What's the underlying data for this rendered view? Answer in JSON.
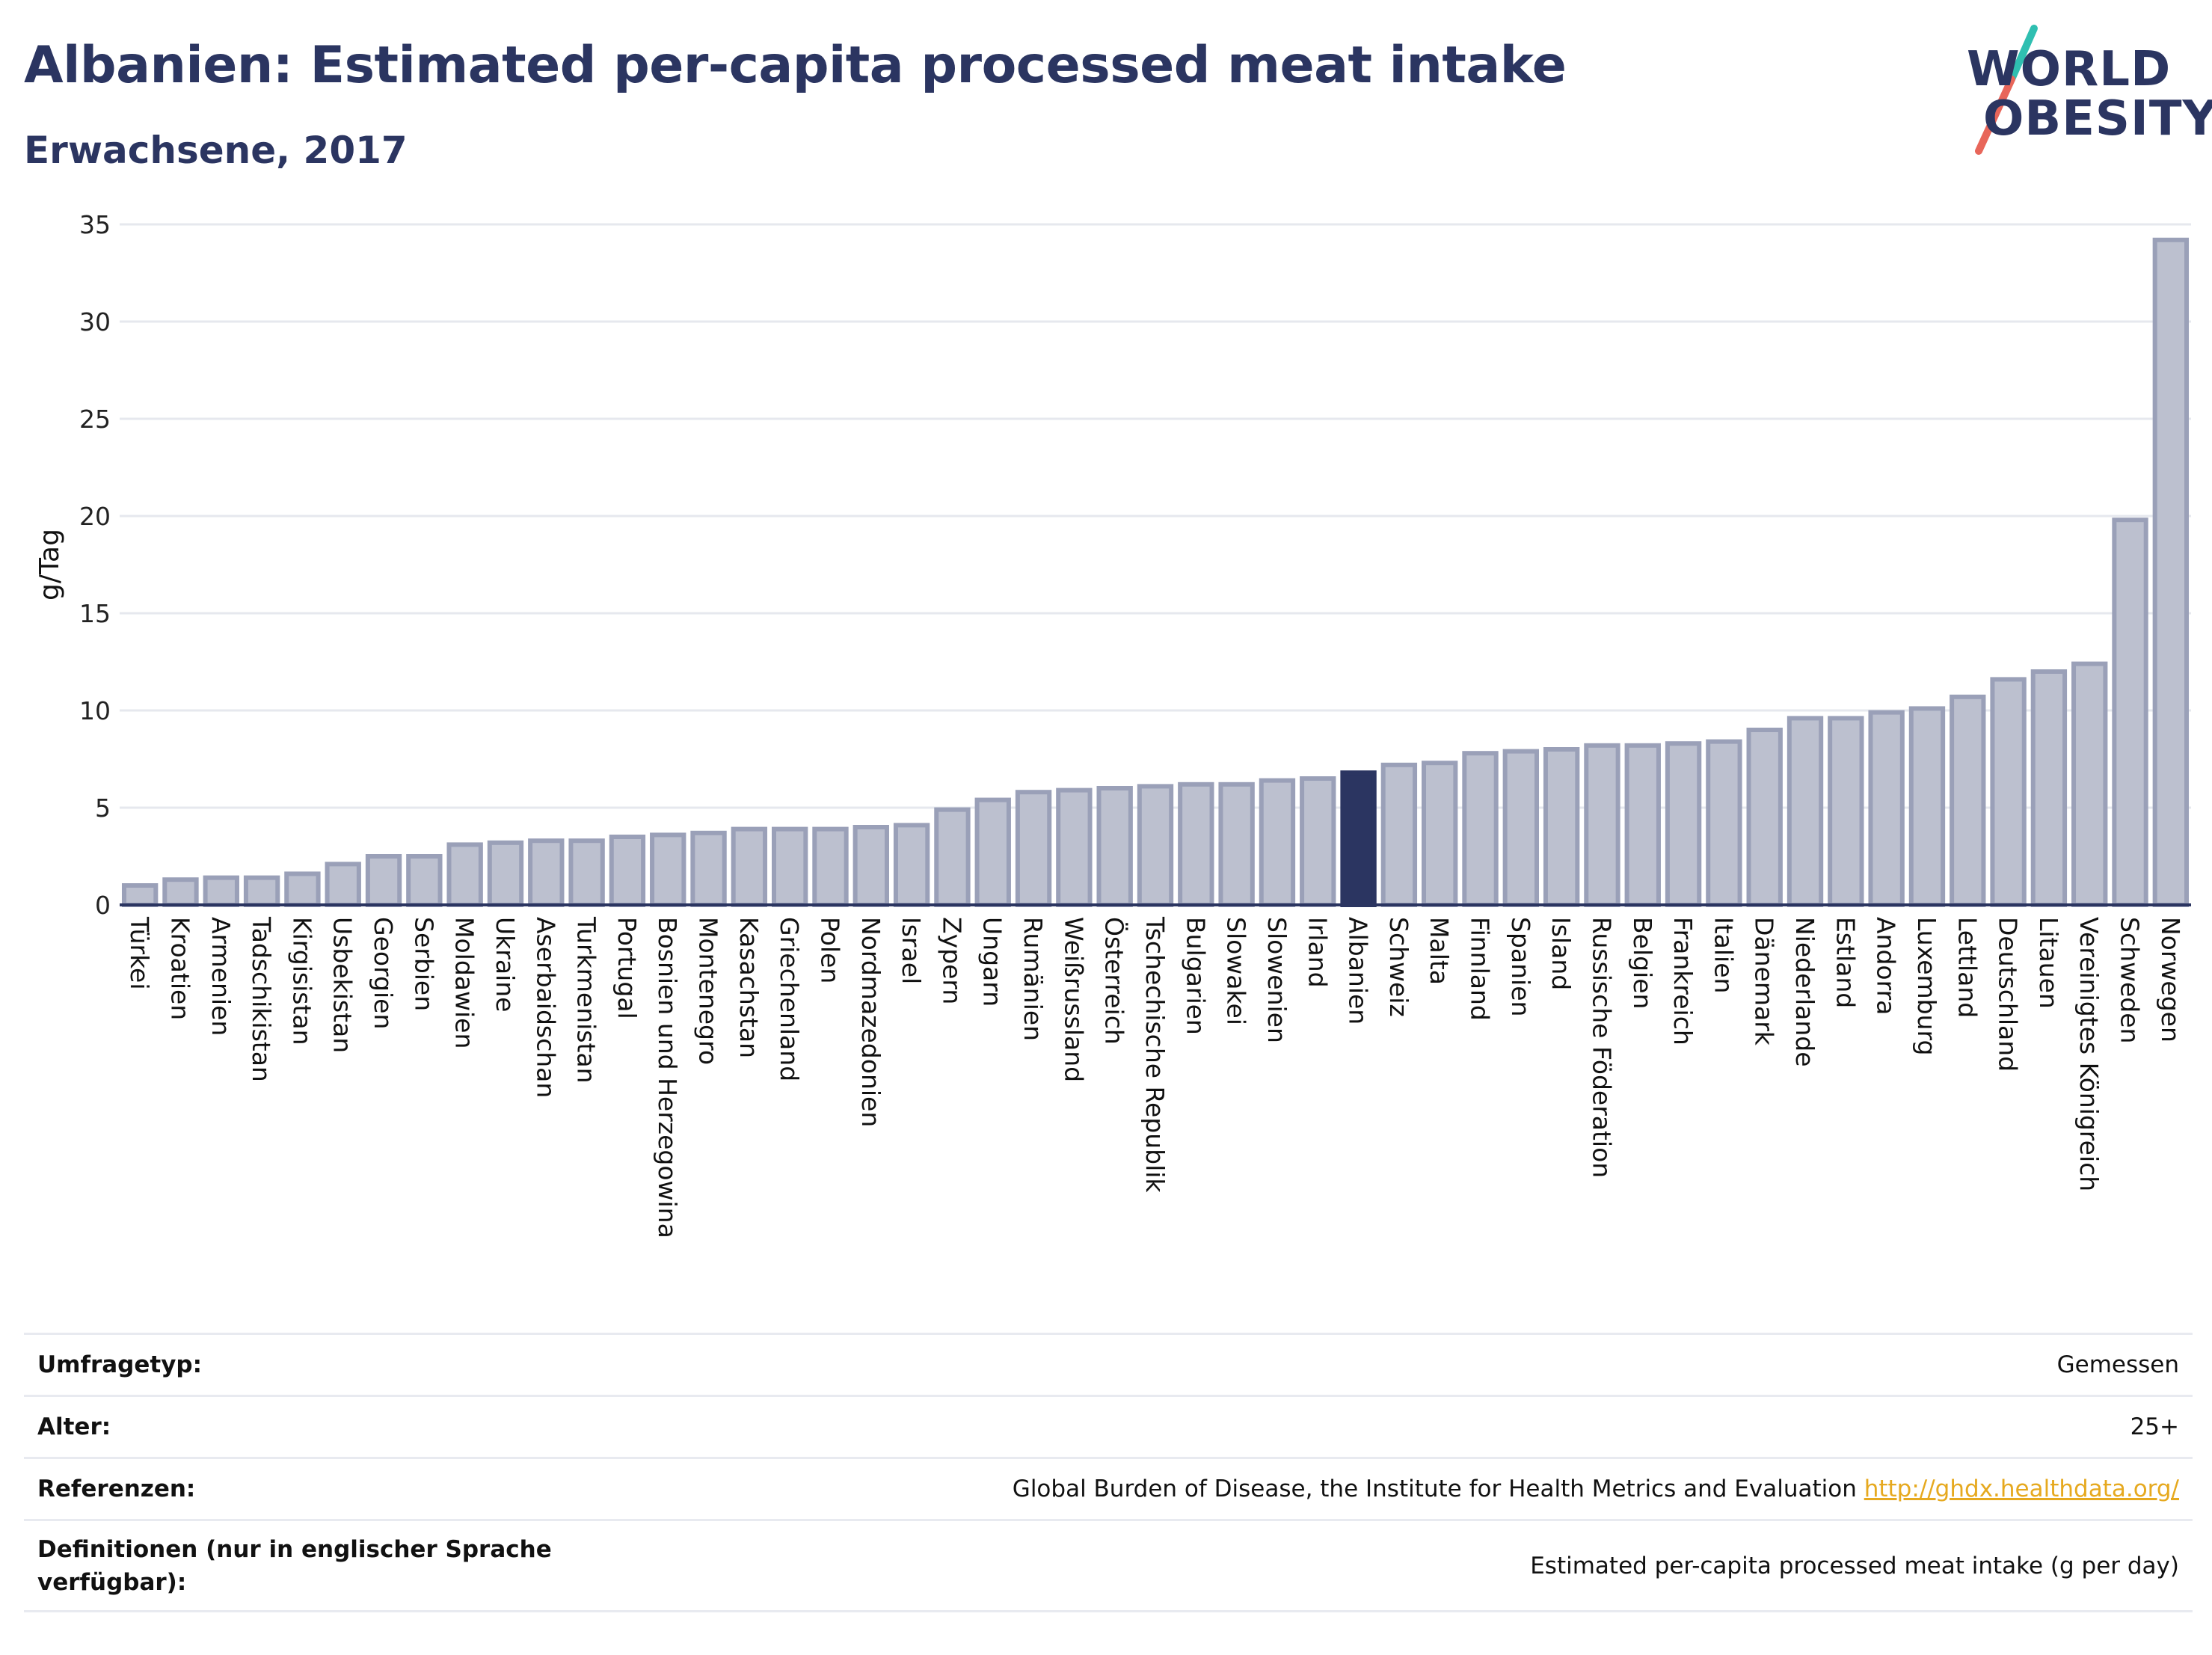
{
  "header": {
    "title": "Albanien: Estimated per-capita processed meat intake",
    "subtitle": "Erwachsene, 2017"
  },
  "logo": {
    "line1": "WORLD",
    "line2": "OBESITY",
    "colors": {
      "text": "#2b3561",
      "slash_top": "#2fbfb1",
      "slash_bottom": "#e8665a"
    }
  },
  "colors": {
    "bar_fill": "#bcc0cf",
    "bar_stroke": "#9aa0b8",
    "highlight": "#2b3561",
    "grid": "#e6e8ee",
    "axis": "#2b3561"
  },
  "chart_data": {
    "type": "bar",
    "ylabel": "g/Tag",
    "ylim": [
      0,
      35
    ],
    "yticks": [
      0,
      5,
      10,
      15,
      20,
      25,
      30,
      35
    ],
    "grid": true,
    "highlight": "Albanien",
    "categories": [
      "Türkei",
      "Kroatien",
      "Armenien",
      "Tadschikistan",
      "Kirgisistan",
      "Usbekistan",
      "Georgien",
      "Serbien",
      "Moldawien",
      "Ukraine",
      "Aserbaidschan",
      "Turkmenistan",
      "Portugal",
      "Bosnien und Herzegowina",
      "Montenegro",
      "Kasachstan",
      "Griechenland",
      "Polen",
      "Nordmazedonien",
      "Israel",
      "Zypern",
      "Ungarn",
      "Rumänien",
      "Weißrussland",
      "Österreich",
      "Tschechische Republik",
      "Bulgarien",
      "Slowakei",
      "Slowenien",
      "Irland",
      "Albanien",
      "Schweiz",
      "Malta",
      "Finnland",
      "Spanien",
      "Island",
      "Russische Föderation",
      "Belgien",
      "Frankreich",
      "Italien",
      "Dänemark",
      "Niederlande",
      "Estland",
      "Andorra",
      "Luxemburg",
      "Lettland",
      "Deutschland",
      "Litauen",
      "Vereinigtes Königreich",
      "Schweden",
      "Norwegen"
    ],
    "values": [
      1.0,
      1.3,
      1.4,
      1.4,
      1.6,
      2.1,
      2.5,
      2.5,
      3.1,
      3.2,
      3.3,
      3.3,
      3.5,
      3.6,
      3.7,
      3.9,
      3.9,
      3.9,
      4.0,
      4.1,
      4.9,
      5.4,
      5.8,
      5.9,
      6.0,
      6.1,
      6.2,
      6.2,
      6.4,
      6.5,
      6.8,
      7.2,
      7.3,
      7.8,
      7.9,
      8.0,
      8.2,
      8.2,
      8.3,
      8.4,
      9.0,
      9.6,
      9.6,
      9.9,
      10.1,
      10.7,
      11.6,
      12.0,
      12.4,
      19.8,
      34.2
    ]
  },
  "footer": {
    "rows": [
      {
        "label": "Umfragetyp:",
        "value": "Gemessen"
      },
      {
        "label": "Alter:",
        "value": "25+"
      },
      {
        "label": "Referenzen:",
        "value": "Global Burden of Disease, the Institute for Health Metrics and Evaluation",
        "link": "http://ghdx.healthdata.org/"
      },
      {
        "label": "Definitionen (nur in englischer Sprache verfügbar):",
        "value": "Estimated per-capita processed meat intake (g per day)"
      }
    ]
  }
}
